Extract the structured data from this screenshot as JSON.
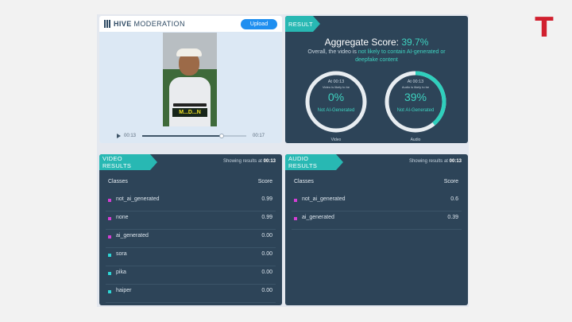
{
  "hive": {
    "brand_strong": "HIVE",
    "brand_rest": " MODERATION",
    "upload_label": "Upload",
    "caption": "M...D...N",
    "current_time": "00:13",
    "duration": "00:17",
    "progress": 0.76
  },
  "result": {
    "tag": "RESULT",
    "aggregate_label": "Aggregate Score:",
    "aggregate_value": "39.7%",
    "summary_prefix": "Overall, the video is ",
    "summary_highlight": "not likely to contain AI-generated or deepfake content",
    "gauges": [
      {
        "time": "At 00:13",
        "line": "Video is likely to be",
        "percent": "0%",
        "fraction": 0.0,
        "verdict": "Not AI-Generated",
        "label": "Video"
      },
      {
        "time": "At 00:13",
        "line": "Audio is likely to be",
        "percent": "39%",
        "fraction": 0.39,
        "verdict": "Not AI-Generated",
        "label": "Audio"
      }
    ]
  },
  "video_results": {
    "tag": "VIDEO RESULTS",
    "showing_prefix": "Showing results at",
    "showing_time": "00:13",
    "col_classes": "Classes",
    "col_score": "Score",
    "rows": [
      {
        "name": "not_ai_generated",
        "score": "0.99",
        "color": "#d43fd4"
      },
      {
        "name": "none",
        "score": "0.99",
        "color": "#d43fd4"
      },
      {
        "name": "ai_generated",
        "score": "0.00",
        "color": "#d43fd4"
      },
      {
        "name": "sora",
        "score": "0.00",
        "color": "#2ed6d6"
      },
      {
        "name": "pika",
        "score": "0.00",
        "color": "#2ed6d6"
      },
      {
        "name": "haiper",
        "score": "0.00",
        "color": "#2ed6d6"
      }
    ]
  },
  "audio_results": {
    "tag": "AUDIO RESULTS",
    "showing_prefix": "Showing results at",
    "showing_time": "00:13",
    "col_classes": "Classes",
    "col_score": "Score",
    "rows": [
      {
        "name": "not_ai_generated",
        "score": "0.6",
        "color": "#d43fd4"
      },
      {
        "name": "ai_generated",
        "score": "0.39",
        "color": "#d43fd4"
      }
    ]
  },
  "colors": {
    "accent": "#28b8b3",
    "highlight": "#3ed3c0",
    "panel": "#2d4458",
    "brand_red": "#d1202f"
  }
}
